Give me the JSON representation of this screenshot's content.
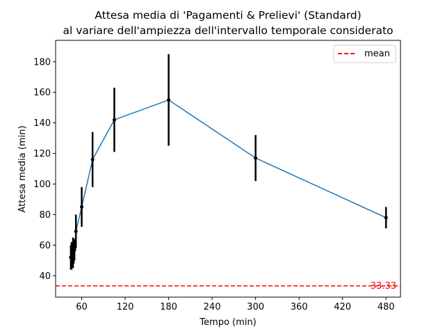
{
  "chart_data": {
    "type": "line",
    "title": "Attesa media di 'Pagamenti & Prelievi' (Standard)",
    "subtitle": "al variare dell'ampiezza dell'intervallo temporale considerato",
    "xlabel": "Tempo (min)",
    "ylabel": "Attesa media (min)",
    "xlim": [
      24,
      500
    ],
    "ylim": [
      26,
      194
    ],
    "xticks": [
      60,
      120,
      180,
      240,
      300,
      360,
      420,
      480
    ],
    "yticks": [
      40,
      60,
      80,
      100,
      120,
      140,
      160,
      180
    ],
    "grid": false,
    "legend_position": "top-right",
    "series": [
      {
        "color": "#1f77b4",
        "points": [
          {
            "x": 45,
            "y": 52,
            "err": 8
          },
          {
            "x": 46,
            "y": 53,
            "err": 9
          },
          {
            "x": 47,
            "y": 54,
            "err": 8
          },
          {
            "x": 48,
            "y": 55,
            "err": 10
          },
          {
            "x": 49,
            "y": 56,
            "err": 8
          },
          {
            "x": 50,
            "y": 57,
            "err": 7
          },
          {
            "x": 52,
            "y": 69,
            "err": 11
          },
          {
            "x": 60,
            "y": 85,
            "err": 13
          },
          {
            "x": 75,
            "y": 116,
            "err": 18
          },
          {
            "x": 105,
            "y": 142,
            "err": 21
          },
          {
            "x": 180,
            "y": 155,
            "err": 30
          },
          {
            "x": 300,
            "y": 117,
            "err": 15
          },
          {
            "x": 480,
            "y": 78,
            "err": 7
          }
        ]
      }
    ],
    "reference_line": {
      "y": 33.33,
      "label": "33.33",
      "legend": "mean",
      "color": "#ff0000"
    }
  }
}
